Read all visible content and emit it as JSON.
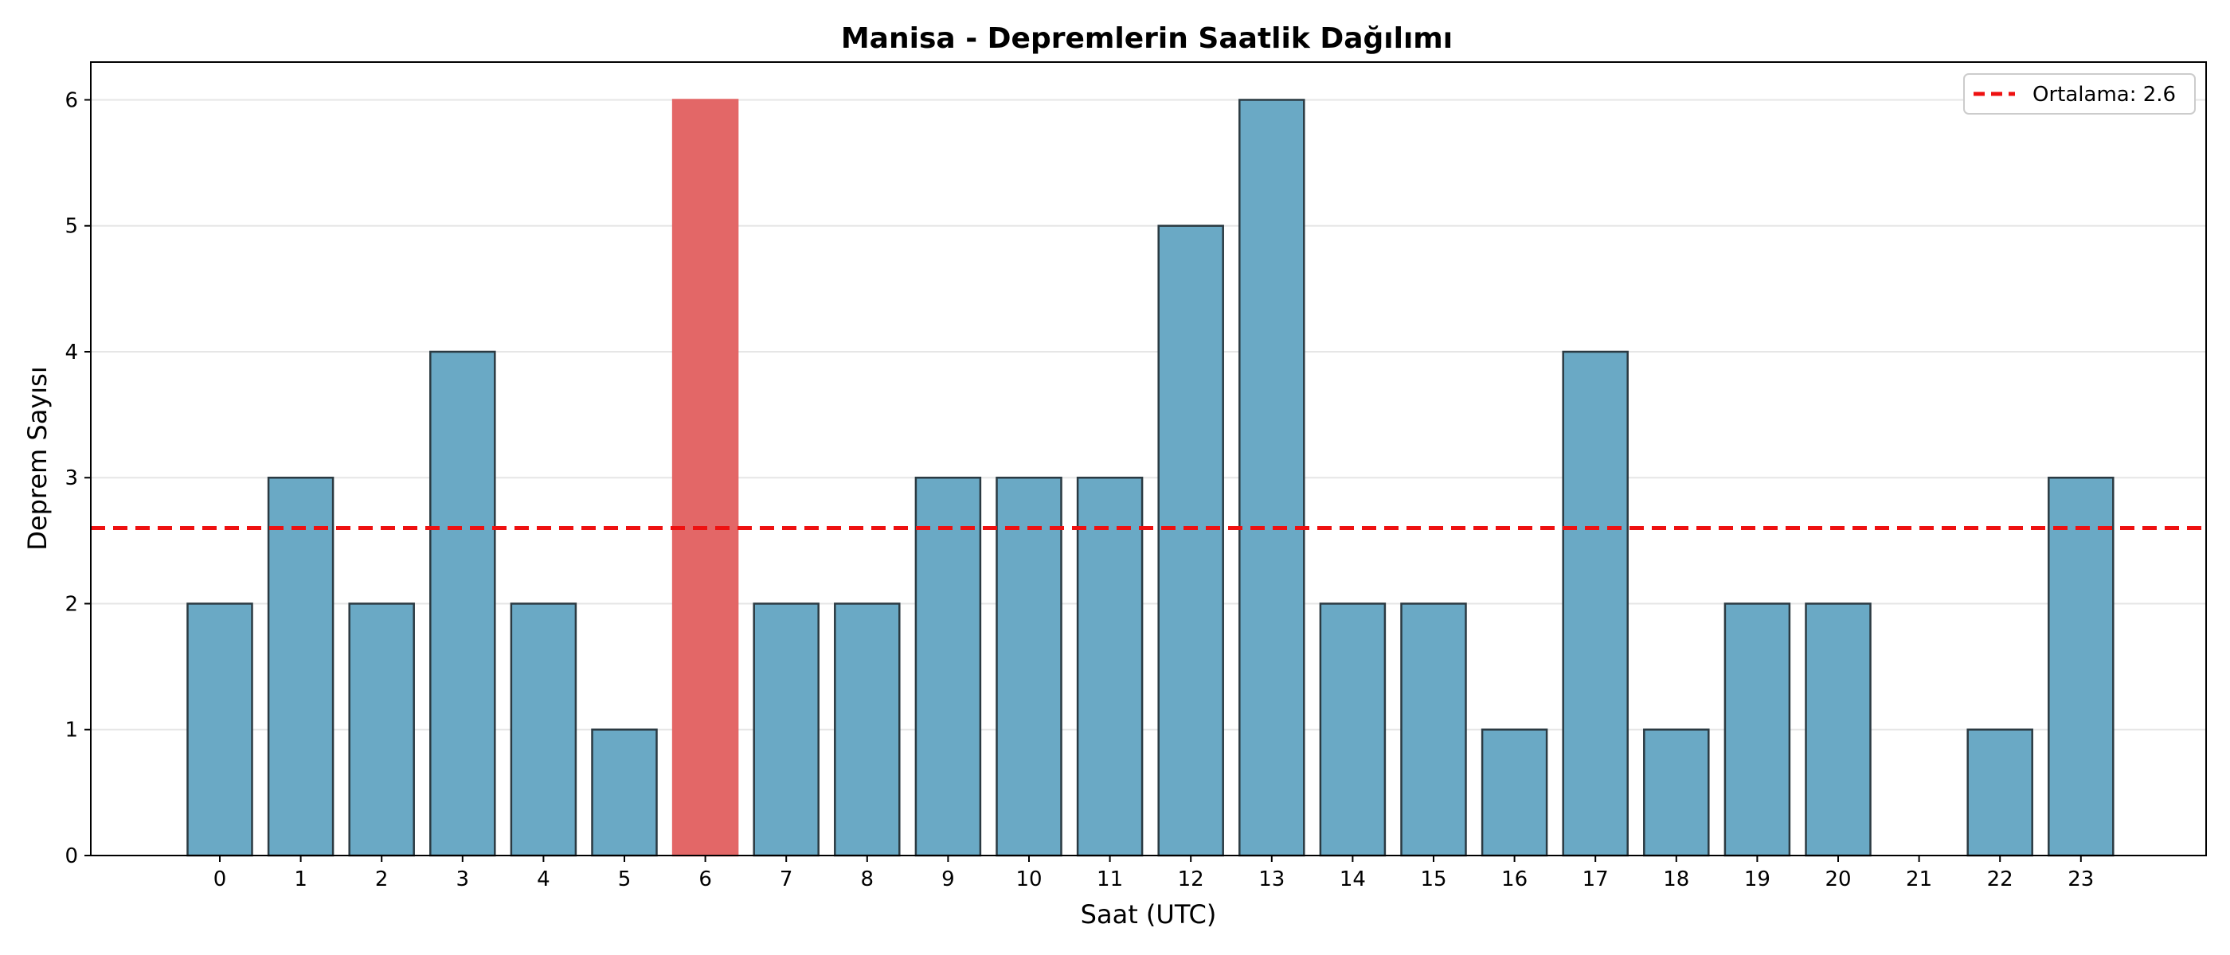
{
  "chart_data": {
    "type": "bar",
    "title": "Manisa - Depremlerin Saatlik Dağılımı",
    "xlabel": "Saat (UTC)",
    "ylabel": "Deprem Sayısı",
    "categories": [
      "0",
      "1",
      "2",
      "3",
      "4",
      "5",
      "6",
      "7",
      "8",
      "9",
      "10",
      "11",
      "12",
      "13",
      "14",
      "15",
      "16",
      "17",
      "18",
      "19",
      "20",
      "21",
      "22",
      "23"
    ],
    "values": [
      2,
      3,
      2,
      4,
      2,
      1,
      6,
      2,
      2,
      3,
      3,
      3,
      5,
      6,
      2,
      2,
      1,
      4,
      1,
      2,
      2,
      0,
      1,
      3
    ],
    "highlight_index": 6,
    "ylim": [
      0,
      6.3
    ],
    "yticks": [
      "0",
      "1",
      "2",
      "3",
      "4",
      "5",
      "6"
    ],
    "grid": "horizontal",
    "mean_line": {
      "value": 2.6,
      "label": "Ortalama: 2.6"
    },
    "legend_position": "top-right",
    "colors": {
      "bar": "#6aa9c5",
      "highlight": "#e36767",
      "bar_edge": "#2b3a42",
      "mean_line": "#ee1111",
      "grid": "#e6e6e6"
    }
  }
}
